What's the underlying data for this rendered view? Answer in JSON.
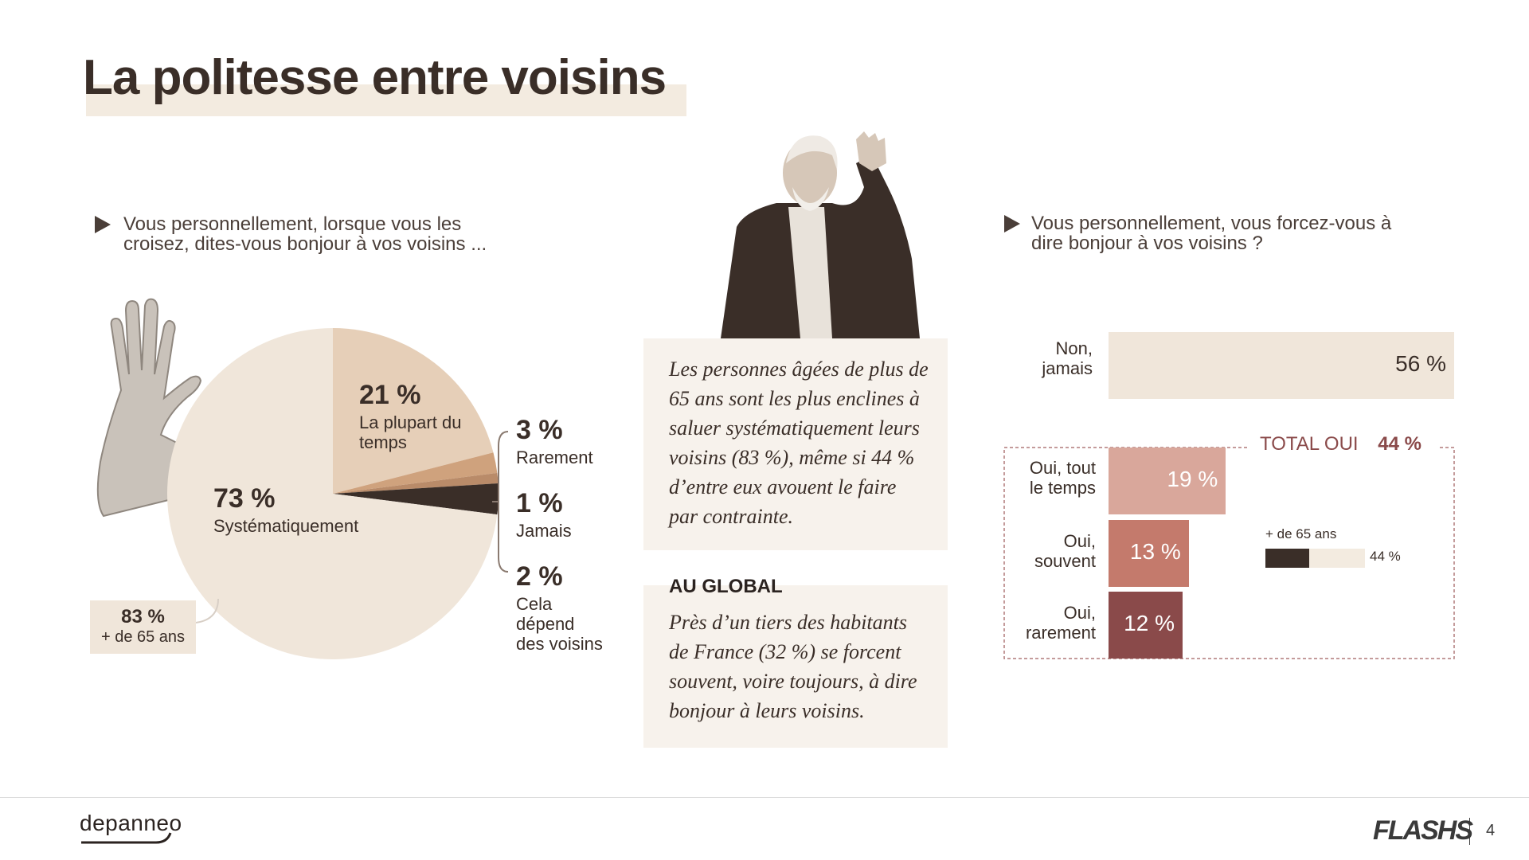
{
  "title": "La politesse entre voisins",
  "left_question": {
    "line1": "Vous personnellement, lorsque vous les",
    "line2": "croisez, dites-vous bonjour à vos voisins ..."
  },
  "right_question": {
    "line1": "Vous personnellement, vous forcez-vous à",
    "line2": "dire bonjour à vos voisins ?"
  },
  "pie_callout": {
    "pct": "83 %",
    "label": "+ de 65 ans"
  },
  "quote_box": {
    "lines": [
      "Les personnes âgées de plus de",
      "65 ans sont les plus enclines à",
      "saluer systématiquement leurs",
      "voisins (83 %), même si 44 %",
      "d’entre eux avouent le faire",
      "par contrainte."
    ]
  },
  "global_box": {
    "heading": "AU GLOBAL",
    "lines": [
      "Près d’un tiers des habitants",
      "de France (32 %) se forcent",
      "souvent, voire toujours, à dire",
      "bonjour à leurs voisins."
    ]
  },
  "total_oui": {
    "label": "TOTAL OUI",
    "value": "44 %"
  },
  "over65": {
    "label": "+ de 65 ans",
    "value": "44 %",
    "fraction": 0.44
  },
  "footer": {
    "logo": "depanneo",
    "brand": "FLASHS",
    "page": "4"
  },
  "colors": {
    "pie_main": "#f0e6da",
    "pie_second": "#e6cfb8",
    "pie_third": "#cfa27d",
    "pie_fourth": "#3a2e28",
    "pie_fifth": "#b98b69",
    "bar_non": "#f0e6da",
    "bar_oui1": "#d9a79b",
    "bar_oui2": "#c47a6c",
    "bar_oui3": "#8a4a4a",
    "accent": "#8a4a4a"
  },
  "chart_data": [
    {
      "type": "pie",
      "slices": [
        {
          "label": "Systématiquement",
          "value": 73,
          "text": "73 %"
        },
        {
          "label": "La plupart du temps",
          "value": 21,
          "text": "21 %"
        },
        {
          "label": "Rarement",
          "value": 3,
          "text": "3 %"
        },
        {
          "label": "Jamais",
          "value": 1,
          "text": "1 %"
        },
        {
          "label": "Cela dépend des voisins",
          "value": 2,
          "text": "2 %"
        }
      ]
    },
    {
      "type": "bar",
      "orientation": "horizontal",
      "categories": [
        "Non, jamais",
        "Oui, tout le temps",
        "Oui, souvent",
        "Oui, rarement"
      ],
      "values": [
        56,
        19,
        13,
        12
      ],
      "value_labels": [
        "56 %",
        "19 %",
        "13 %",
        "12 %"
      ],
      "xlim": [
        0,
        56
      ]
    }
  ]
}
